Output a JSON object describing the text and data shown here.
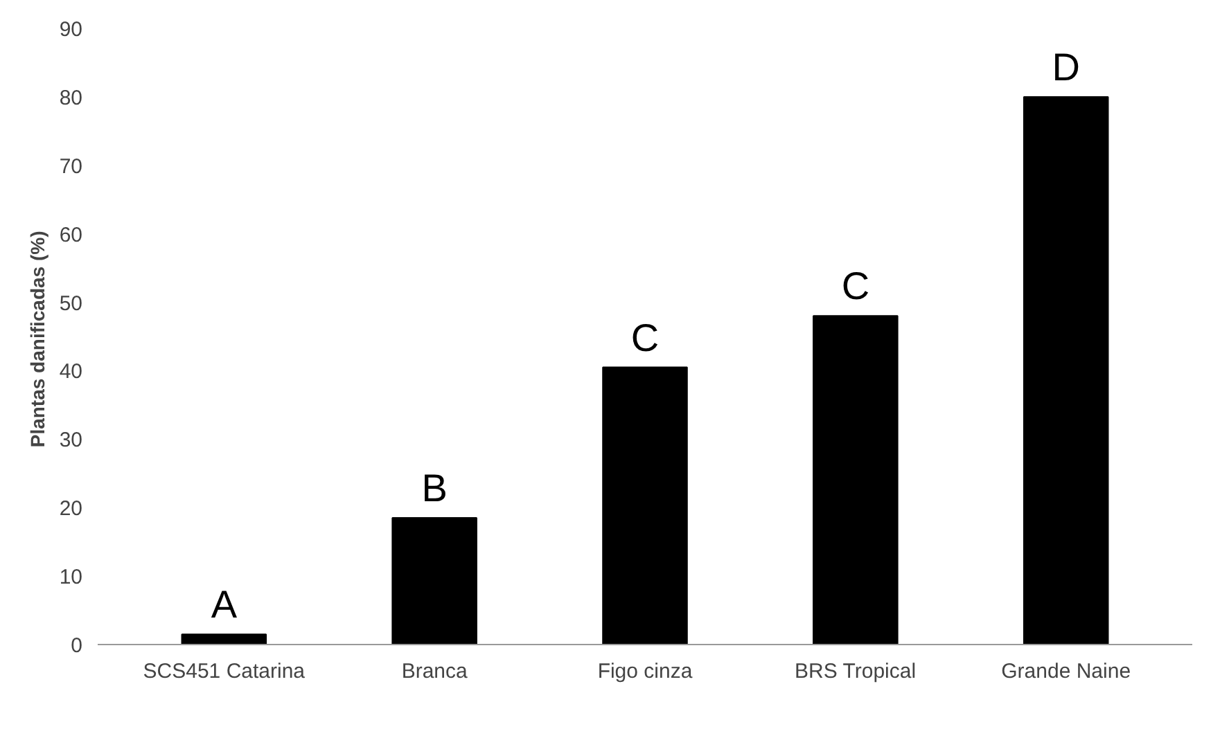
{
  "chart_data": {
    "type": "bar",
    "ylabel": "Plantas danificadas  (%)",
    "categories": [
      "SCS451 Catarina",
      "Branca",
      "Figo cinza",
      "BRS Tropical",
      "Grande Naine"
    ],
    "values": [
      1.5,
      18.5,
      40.5,
      48,
      80
    ],
    "color": "#000000",
    "ylim": [
      0,
      90
    ],
    "yticks": [
      0,
      10,
      20,
      30,
      40,
      50,
      60,
      70,
      80,
      90
    ],
    "grid": false,
    "annotations": [
      {
        "text": "A",
        "x": "SCS451 Catarina",
        "y": 1.5
      },
      {
        "text": "B",
        "x": "Branca",
        "y": 18.5
      },
      {
        "text": "C",
        "x": "Figo cinza",
        "y": 40.5
      },
      {
        "text": "C",
        "x": "BRS Tropical",
        "y": 48
      },
      {
        "text": "D",
        "x": "Grande Naine",
        "y": 80
      }
    ]
  }
}
